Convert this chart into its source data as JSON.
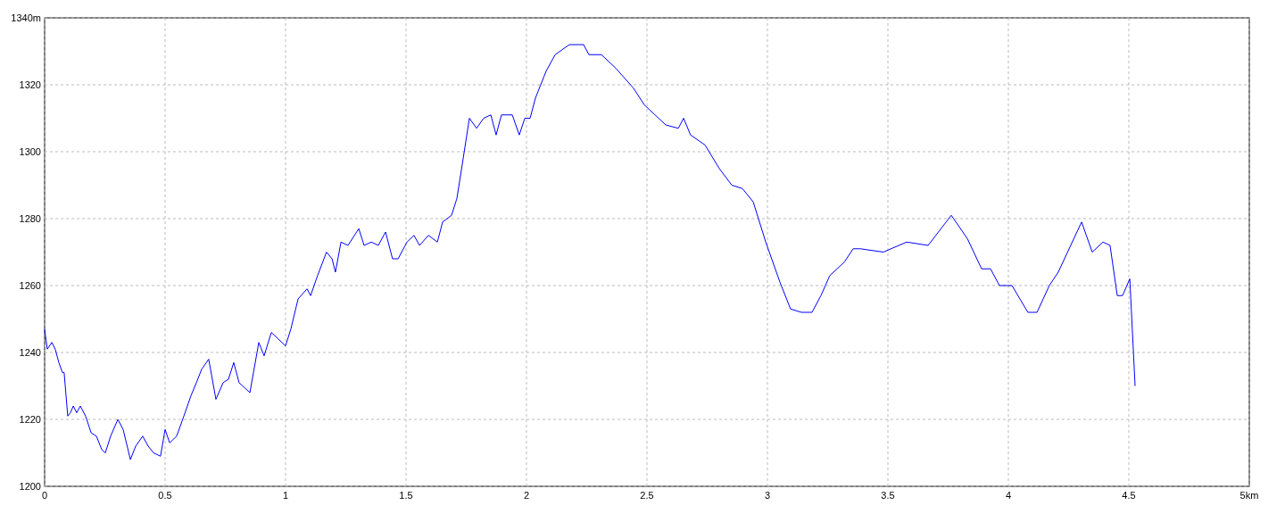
{
  "chart_data": {
    "type": "line",
    "x": [
      0,
      0.011,
      0.03,
      0.044,
      0.059,
      0.074,
      0.081,
      0.096,
      0.107,
      0.119,
      0.133,
      0.148,
      0.17,
      0.193,
      0.215,
      0.237,
      0.252,
      0.274,
      0.304,
      0.326,
      0.356,
      0.378,
      0.407,
      0.43,
      0.452,
      0.481,
      0.5,
      0.519,
      0.548,
      0.578,
      0.607,
      0.63,
      0.652,
      0.681,
      0.711,
      0.741,
      0.763,
      0.785,
      0.807,
      0.852,
      0.889,
      0.911,
      0.941,
      0.97,
      1,
      1.022,
      1.052,
      1.089,
      1.104,
      1.133,
      1.17,
      1.193,
      1.207,
      1.23,
      1.259,
      1.304,
      1.326,
      1.356,
      1.385,
      1.415,
      1.444,
      1.467,
      1.504,
      1.533,
      1.556,
      1.593,
      1.63,
      1.652,
      1.689,
      1.711,
      1.733,
      1.763,
      1.793,
      1.822,
      1.852,
      1.874,
      1.896,
      1.941,
      1.97,
      1.993,
      2.015,
      2.037,
      2.081,
      2.119,
      2.178,
      2.237,
      2.259,
      2.311,
      2.37,
      2.444,
      2.489,
      2.578,
      2.63,
      2.652,
      2.681,
      2.741,
      2.8,
      2.852,
      2.896,
      2.941,
      2.993,
      3.052,
      3.096,
      3.141,
      3.185,
      3.222,
      3.259,
      3.319,
      3.356,
      3.385,
      3.481,
      3.578,
      3.667,
      3.763,
      3.83,
      3.889,
      3.926,
      3.963,
      4.015,
      4.081,
      4.119,
      4.17,
      4.207,
      4.304,
      4.348,
      4.393,
      4.422,
      4.452,
      4.474,
      4.504,
      4.526
    ],
    "series": [
      {
        "color": "#0000ff",
        "values": [
          1247,
          1241,
          1243,
          1241,
          1237,
          1234,
          1234,
          1221,
          1222,
          1224,
          1222,
          1224,
          1221,
          1216,
          1215,
          1211,
          1210,
          1215,
          1220,
          1217,
          1208,
          1212,
          1215,
          1212,
          1210,
          1209,
          1217,
          1213,
          1215,
          1221,
          1227,
          1231,
          1235,
          1238,
          1226,
          1231,
          1232,
          1237,
          1231,
          1228,
          1243,
          1239,
          1246,
          1244,
          1242,
          1247,
          1256,
          1259,
          1257,
          1263,
          1270,
          1268,
          1264,
          1273,
          1272,
          1277,
          1272,
          1273,
          1272,
          1276,
          1268,
          1268,
          1273,
          1275,
          1272,
          1275,
          1273,
          1279,
          1281,
          1286,
          1296,
          1310,
          1307,
          1310,
          1311,
          1305,
          1311,
          1311,
          1305,
          1310,
          1310,
          1316,
          1324,
          1329,
          1332,
          1332,
          1329,
          1329,
          1325,
          1319,
          1314,
          1308,
          1307,
          1310,
          1305,
          1302,
          1295,
          1290,
          1289,
          1285,
          1273,
          1261,
          1253,
          1252,
          1252,
          1257,
          1263,
          1267,
          1271,
          1271,
          1270,
          1273,
          1272,
          1281,
          1274,
          1265,
          1265,
          1260,
          1260,
          1252,
          1252,
          1260,
          1264,
          1279,
          1270,
          1273,
          1272,
          1257,
          1257,
          1262,
          1230
        ]
      }
    ],
    "xlim": [
      0,
      5
    ],
    "xticks": [
      0,
      0.5,
      1,
      1.5,
      2,
      2.5,
      3,
      3.5,
      4,
      4.5,
      {
        "value": 5,
        "label": "5km"
      }
    ],
    "ylim": [
      1200,
      1340
    ],
    "yticks": [
      1200,
      1220,
      1240,
      1260,
      1280,
      1300,
      1320,
      {
        "value": 1340,
        "label": "1340m"
      }
    ],
    "grid": true,
    "line_style": "solid",
    "marker": "none"
  }
}
